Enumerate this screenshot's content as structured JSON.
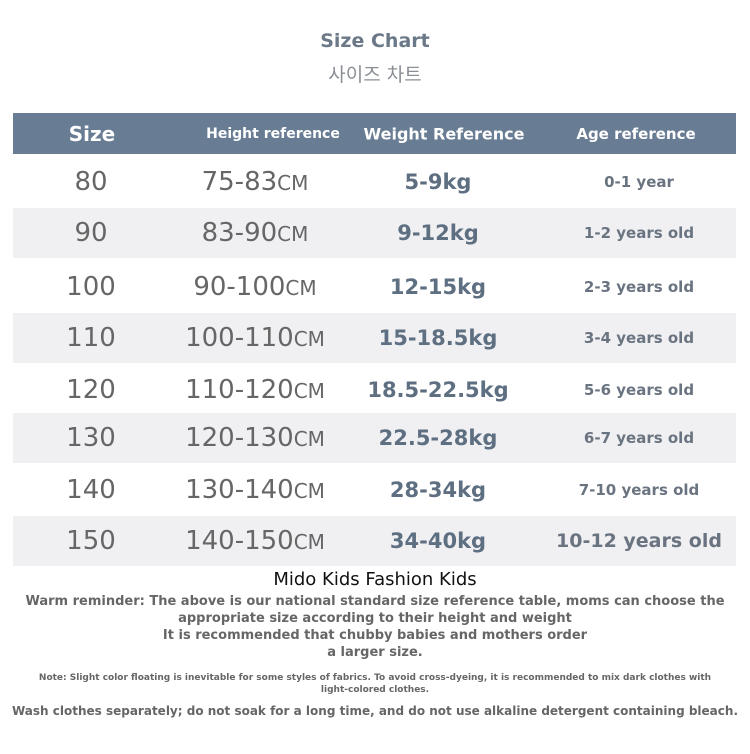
{
  "title": "Size Chart",
  "subtitle": "사이즈 차트",
  "headers": {
    "size": "Size",
    "height": "Height reference",
    "weight": "Weight Reference",
    "age": "Age reference"
  },
  "rows": [
    {
      "size": "80",
      "height": "75-83",
      "unit": "CM",
      "weight": "5-9kg",
      "age": "0-1 year"
    },
    {
      "size": "90",
      "height": "83-90",
      "unit": "CM",
      "weight": "9-12kg",
      "age": "1-2 years old"
    },
    {
      "size": "100",
      "height": "90-100",
      "unit": "CM",
      "weight": "12-15kg",
      "age": "2-3 years old"
    },
    {
      "size": "110",
      "height": "100-110",
      "unit": "CM",
      "weight": "15-18.5kg",
      "age": "3-4 years old"
    },
    {
      "size": "120",
      "height": "110-120",
      "unit": "CM",
      "weight": "18.5-22.5kg",
      "age": "5-6 years old"
    },
    {
      "size": "130",
      "height": "120-130",
      "unit": "CM",
      "weight": "22.5-28kg",
      "age": "6-7 years old"
    },
    {
      "size": "140",
      "height": "130-140",
      "unit": "CM",
      "weight": "28-34kg",
      "age": "7-10 years old"
    },
    {
      "size": "150",
      "height": "140-150",
      "unit": "CM",
      "weight": "34-40kg",
      "age": "10-12 years old"
    }
  ],
  "watermark": "Mido Kids Fashion Kids",
  "reminder": [
    "Warm reminder: The above is our national standard size reference table, moms can choose the",
    "appropriate size according to their height and weight",
    "It is recommended that chubby babies and mothers order",
    "a larger size."
  ],
  "note": [
    "Note: Slight color floating is inevitable for some styles of fabrics. To avoid cross-dyeing, it is recommended to mix dark clothes with",
    "light-colored clothes."
  ],
  "wash": "Wash clothes separately; do not soak for a long time, and do not use alkaline detergent containing bleach."
}
